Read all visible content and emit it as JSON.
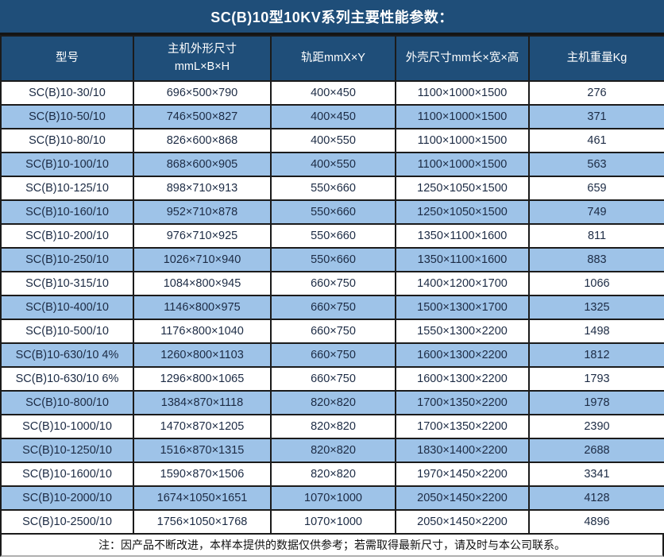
{
  "title": "SC(B)10型10KV系列主要性能参数：",
  "colors": {
    "header_bg": "#1F4E79",
    "header_text": "#FFFFFF",
    "row_alt_bg": "#9EC3E8",
    "row_bg": "#FFFFFF",
    "grid_border": "#1B1B1B",
    "cell_text": "#1C2B44"
  },
  "table": {
    "columns": [
      {
        "label": "型号"
      },
      {
        "label": "主机外形尺寸",
        "label2": "mmL×B×H"
      },
      {
        "label": "轨距mmX×Y"
      },
      {
        "label": "外壳尺寸mm长×宽×高"
      },
      {
        "label": "主机重量Kg"
      }
    ],
    "rows": [
      [
        "SC(B)10-30/10",
        "696×500×790",
        "400×450",
        "1100×1000×1500",
        "276"
      ],
      [
        "SC(B)10-50/10",
        "746×500×827",
        "400×450",
        "1100×1000×1500",
        "371"
      ],
      [
        "SC(B)10-80/10",
        "826×600×868",
        "400×550",
        "1100×1000×1500",
        "461"
      ],
      [
        "SC(B)10-100/10",
        "868×600×905",
        "400×550",
        "1100×1000×1500",
        "563"
      ],
      [
        "SC(B)10-125/10",
        "898×710×913",
        "550×660",
        "1250×1050×1500",
        "659"
      ],
      [
        "SC(B)10-160/10",
        "952×710×878",
        "550×660",
        "1250×1050×1500",
        "749"
      ],
      [
        "SC(B)10-200/10",
        "976×710×925",
        "550×660",
        "1350×1100×1600",
        "811"
      ],
      [
        "SC(B)10-250/10",
        "1026×710×940",
        "550×660",
        "1350×1100×1600",
        "883"
      ],
      [
        "SC(B)10-315/10",
        "1084×800×945",
        "660×750",
        "1400×1200×1700",
        "1066"
      ],
      [
        "SC(B)10-400/10",
        "1146×800×975",
        "660×750",
        "1500×1300×1700",
        "1325"
      ],
      [
        "SC(B)10-500/10",
        "1176×800×1040",
        "660×750",
        "1550×1300×2200",
        "1498"
      ],
      [
        "SC(B)10-630/10 4%",
        "1260×800×1103",
        "660×750",
        "1600×1300×2200",
        "1812"
      ],
      [
        "SC(B)10-630/10 6%",
        "1296×800×1065",
        "660×750",
        "1600×1300×2200",
        "1793"
      ],
      [
        "SC(B)10-800/10",
        "1384×870×1118",
        "820×820",
        "1700×1350×2200",
        "1978"
      ],
      [
        "SC(B)10-1000/10",
        "1470×870×1205",
        "820×820",
        "1700×1350×2200",
        "2390"
      ],
      [
        "SC(B)10-1250/10",
        "1516×870×1315",
        "820×820",
        "1830×1400×2200",
        "2688"
      ],
      [
        "SC(B)10-1600/10",
        "1590×870×1506",
        "820×820",
        "1970×1450×2200",
        "3341"
      ],
      [
        "SC(B)10-2000/10",
        "1674×1050×1651",
        "1070×1000",
        "2050×1450×2200",
        "4128"
      ],
      [
        "SC(B)10-2500/10",
        "1756×1050×1768",
        "1070×1000",
        "2050×1450×2200",
        "4896"
      ]
    ]
  },
  "note": "注：因产品不断改进，本样本提供的数据仅供参考；若需取得最新尺寸，请及时与本公司联系。"
}
